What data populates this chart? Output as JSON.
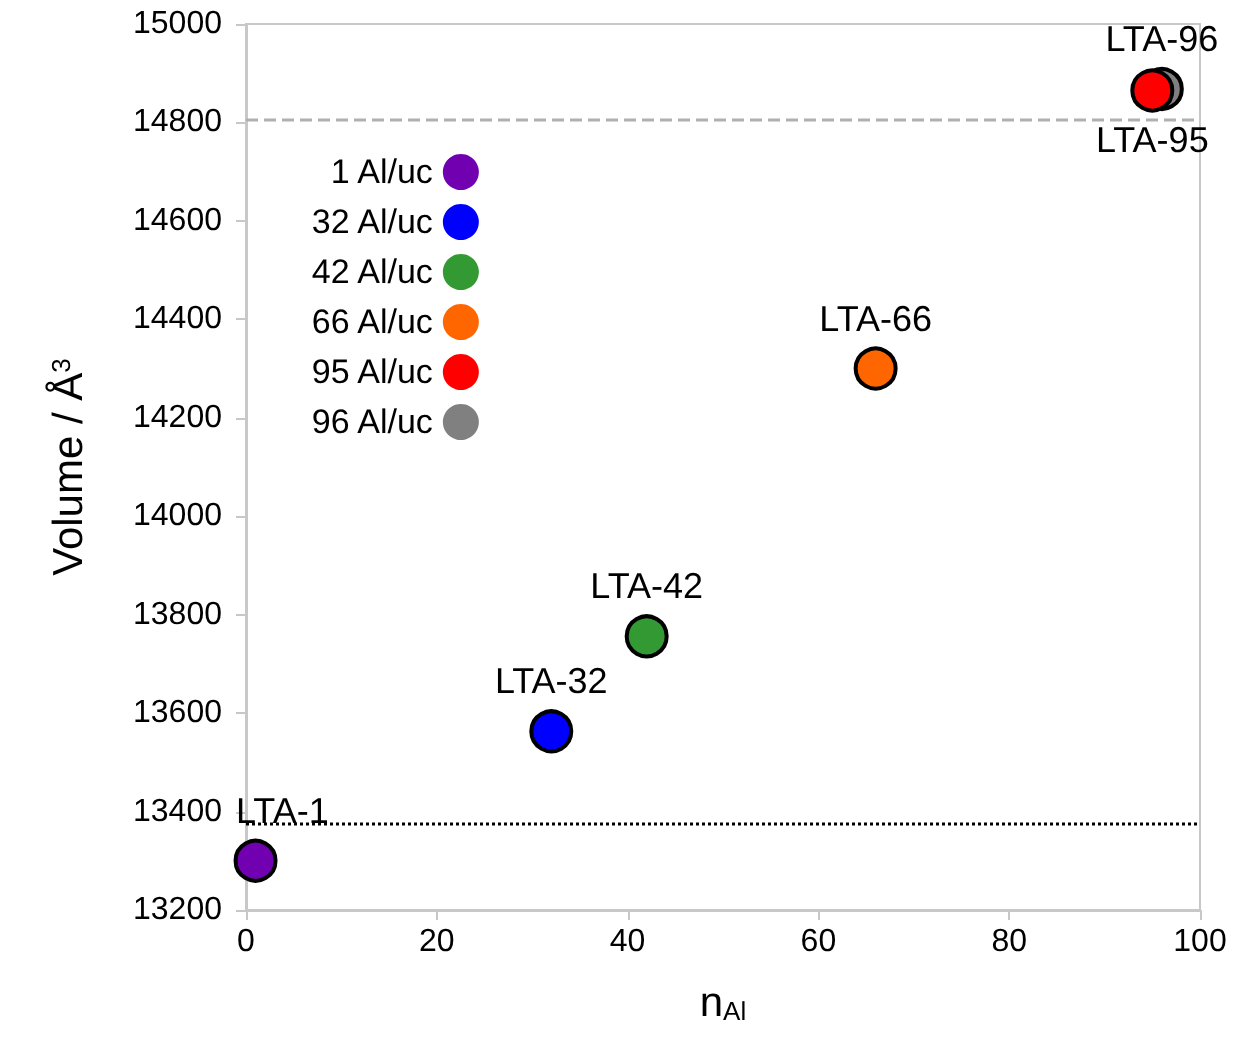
{
  "chart_data": {
    "type": "scatter",
    "xlabel": "n$_{Al}$",
    "ylabel": "Volume / Å$^{3}$",
    "xlim": [
      0,
      100
    ],
    "xticks": [
      0,
      20,
      40,
      60,
      80,
      100
    ],
    "ylim": [
      13200,
      15000
    ],
    "yticks": [
      13200,
      13400,
      13600,
      13800,
      14000,
      14200,
      14400,
      14600,
      14800,
      15000
    ],
    "series": [
      {
        "name": "1 Al/uc",
        "color": "#7000b0",
        "x": [
          1
        ],
        "values": [
          13300
        ]
      },
      {
        "name": "32 Al/uc",
        "color": "#0000ff",
        "x": [
          32
        ],
        "values": [
          13563
        ]
      },
      {
        "name": "42 Al/uc",
        "color": "#339933",
        "x": [
          42
        ],
        "values": [
          13756
        ]
      },
      {
        "name": "66 Al/uc",
        "color": "#ff6600",
        "x": [
          66
        ],
        "values": [
          14300
        ]
      },
      {
        "name": "95 Al/uc",
        "color": "#ff0000",
        "x": [
          95
        ],
        "values": [
          14865
        ]
      },
      {
        "name": "96 Al/uc",
        "color": "#808080",
        "x": [
          96
        ],
        "values": [
          14868
        ]
      }
    ],
    "ref_lines": [
      {
        "axis": "y",
        "value": 14805,
        "color": "#b0b0b0",
        "line_style": "dashed"
      },
      {
        "axis": "y",
        "value": 13377,
        "color": "#000000",
        "line_style": "dotted"
      }
    ],
    "annotations": [
      {
        "text": "LTA-1",
        "x": 1,
        "y": 13300
      },
      {
        "text": "LTA-32",
        "x": 32,
        "y": 13563
      },
      {
        "text": "LTA-42",
        "x": 42,
        "y": 13756
      },
      {
        "text": "LTA-66",
        "x": 66,
        "y": 14300
      },
      {
        "text": "LTA-96",
        "x": 96,
        "y": 14868
      },
      {
        "text": "LTA-95",
        "x": 95,
        "y": 14865
      }
    ],
    "marker": "circle",
    "grid": false,
    "legend": "top left"
  }
}
